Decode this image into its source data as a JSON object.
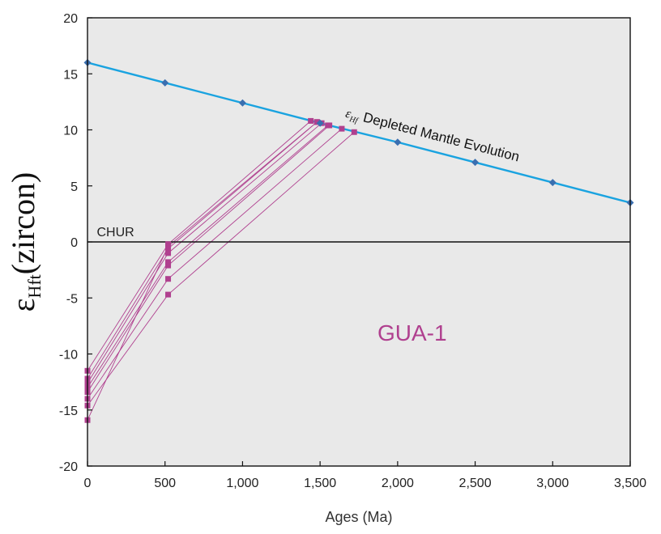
{
  "chart_data": {
    "type": "line",
    "xlabel": "Ages (Ma)",
    "ylabel_symbol": "ε",
    "ylabel_subscript": "Hft",
    "ylabel_rest": "(zircon)",
    "xlim": [
      0,
      3500
    ],
    "ylim": [
      -20,
      20
    ],
    "x_ticks": [
      0,
      500,
      1000,
      1500,
      2000,
      2500,
      3000,
      3500
    ],
    "x_tick_labels": [
      "0",
      "500",
      "1,000",
      "1,500",
      "2,000",
      "2,500",
      "3,000",
      "3,500"
    ],
    "y_ticks": [
      -20,
      -15,
      -10,
      -5,
      0,
      5,
      10,
      15,
      20
    ],
    "y_tick_labels": [
      "-20",
      "-15",
      "-10",
      "-5",
      "0",
      "5",
      "10",
      "15",
      "20"
    ],
    "grid": false,
    "plot_background": "#e9e9e9",
    "reference_line": {
      "label": "CHUR",
      "y": 0,
      "color": "#111111"
    },
    "depleted_mantle": {
      "label_symbol": "ε",
      "label_subscript": "Hf",
      "label_text": "Depleted Mantle Evolution",
      "color": "#1aa3e0",
      "marker_color": "#3a6fb0",
      "points": [
        {
          "x": 0,
          "y": 16
        },
        {
          "x": 500,
          "y": 14.2
        },
        {
          "x": 1000,
          "y": 12.4
        },
        {
          "x": 1500,
          "y": 10.6
        },
        {
          "x": 2000,
          "y": 8.9
        },
        {
          "x": 2500,
          "y": 7.1
        },
        {
          "x": 3000,
          "y": 5.3
        },
        {
          "x": 3500,
          "y": 3.5
        }
      ]
    },
    "sample_label": "GUA-1",
    "sample_color": "#b0408f",
    "samples": [
      {
        "x": [
          0,
          520,
          1440
        ],
        "y": [
          -11.5,
          -0.2,
          10.8
        ]
      },
      {
        "x": [
          0,
          520,
          1480
        ],
        "y": [
          -12.2,
          -0.6,
          10.7
        ]
      },
      {
        "x": [
          0,
          520,
          1510
        ],
        "y": [
          -12.6,
          -1.0,
          10.6
        ]
      },
      {
        "x": [
          0,
          520,
          1550
        ],
        "y": [
          -13.0,
          -1.8,
          10.4
        ]
      },
      {
        "x": [
          0,
          520,
          1560
        ],
        "y": [
          -13.4,
          -2.1,
          10.4
        ]
      },
      {
        "x": [
          0,
          520,
          1640
        ],
        "y": [
          -14.0,
          -3.3,
          10.1
        ]
      },
      {
        "x": [
          0,
          520,
          1720
        ],
        "y": [
          -14.6,
          -4.7,
          9.8
        ]
      },
      {
        "x": [
          0,
          520,
          1480
        ],
        "y": [
          -15.9,
          -0.4,
          10.7
        ]
      }
    ]
  }
}
